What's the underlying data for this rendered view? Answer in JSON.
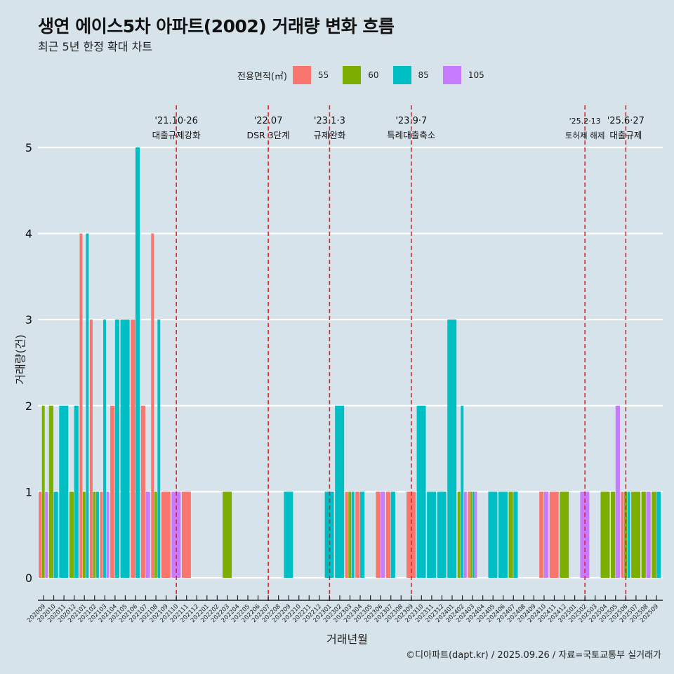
{
  "chart_data": {
    "type": "bar",
    "title": "생연 에이스5차 아파트(2002) 거래량 변화 흐름",
    "subtitle": "최근 5년 한정 확대 차트",
    "xlabel": "거래년월",
    "ylabel": "거래량(건)",
    "ylim": [
      0,
      5
    ],
    "yticks": [
      "0",
      "1",
      "2",
      "3",
      "4",
      "5"
    ],
    "grid": true,
    "legend": {
      "title": "전용면적(㎡)",
      "position": "top",
      "entries": [
        {
          "name": "55",
          "color": "#F8766D"
        },
        {
          "name": "60",
          "color": "#7CAE00"
        },
        {
          "name": "85",
          "color": "#00BFC4"
        },
        {
          "name": "105",
          "color": "#C77CFF"
        }
      ]
    },
    "categories": [
      "202009",
      "202010",
      "202011",
      "202012",
      "202101",
      "202102",
      "202103",
      "202104",
      "202105",
      "202106",
      "202107",
      "202108",
      "202109",
      "202110",
      "202111",
      "202112",
      "202201",
      "202202",
      "202203",
      "202204",
      "202205",
      "202206",
      "202207",
      "202208",
      "202209",
      "202210",
      "202211",
      "202212",
      "202301",
      "202302",
      "202303",
      "202304",
      "202305",
      "202306",
      "202307",
      "202308",
      "202309",
      "202310",
      "202311",
      "202312",
      "202401",
      "202402",
      "202403",
      "202404",
      "202405",
      "202406",
      "202407",
      "202408",
      "202409",
      "202410",
      "202411",
      "202412",
      "202501",
      "202502",
      "202503",
      "202504",
      "202505",
      "202506",
      "202507",
      "202508",
      "202509"
    ],
    "series": [
      {
        "name": "55",
        "color": "#F8766D",
        "values": [
          1,
          0,
          0,
          0,
          4,
          3,
          1,
          2,
          0,
          3,
          2,
          4,
          1,
          0,
          1,
          0,
          0,
          0,
          0,
          0,
          0,
          0,
          0,
          0,
          0,
          0,
          0,
          0,
          0,
          0,
          1,
          1,
          0,
          1,
          1,
          0,
          1,
          0,
          0,
          0,
          0,
          0,
          1,
          0,
          0,
          0,
          0,
          0,
          0,
          1,
          1,
          0,
          0,
          0,
          0,
          0,
          0,
          1,
          0,
          0,
          0
        ]
      },
      {
        "name": "60",
        "color": "#7CAE00",
        "values": [
          2,
          2,
          0,
          1,
          1,
          1,
          0,
          0,
          0,
          0,
          0,
          1,
          0,
          0,
          0,
          0,
          0,
          0,
          1,
          0,
          0,
          0,
          0,
          0,
          0,
          0,
          0,
          0,
          0,
          0,
          1,
          0,
          0,
          0,
          0,
          0,
          0,
          0,
          0,
          0,
          0,
          1,
          1,
          0,
          0,
          0,
          1,
          0,
          0,
          0,
          0,
          1,
          0,
          0,
          0,
          1,
          1,
          1,
          1,
          1,
          1
        ]
      },
      {
        "name": "85",
        "color": "#00BFC4",
        "values": [
          0,
          1,
          2,
          2,
          4,
          1,
          3,
          3,
          3,
          5,
          0,
          3,
          0,
          0,
          0,
          0,
          0,
          0,
          0,
          0,
          0,
          0,
          0,
          0,
          1,
          0,
          0,
          0,
          1,
          2,
          1,
          1,
          0,
          0,
          1,
          0,
          0,
          2,
          1,
          1,
          3,
          2,
          1,
          0,
          1,
          1,
          1,
          0,
          0,
          0,
          0,
          0,
          0,
          0,
          0,
          0,
          0,
          1,
          0,
          0,
          1
        ]
      },
      {
        "name": "105",
        "color": "#C77CFF",
        "values": [
          1,
          0,
          0,
          0,
          0,
          0,
          1,
          0,
          0,
          0,
          1,
          0,
          0,
          1,
          0,
          0,
          0,
          0,
          0,
          0,
          0,
          0,
          0,
          0,
          0,
          0,
          0,
          0,
          0,
          0,
          0,
          0,
          0,
          1,
          0,
          0,
          0,
          0,
          0,
          0,
          0,
          1,
          1,
          0,
          0,
          0,
          0,
          0,
          0,
          1,
          0,
          0,
          0,
          1,
          0,
          0,
          2,
          0,
          0,
          1,
          0
        ]
      }
    ],
    "annotations": [
      {
        "month": "202110",
        "date": "'21.10·26",
        "label": "대출규제강화"
      },
      {
        "month": "202207",
        "date": "'22.07",
        "label": "DSR 3단계"
      },
      {
        "month": "202301",
        "date": "'23.1·3",
        "label": "규제완화"
      },
      {
        "month": "202309",
        "date": "'23.9·7",
        "label": "특례대출축소"
      },
      {
        "month": "202502",
        "date": "'25.2·13",
        "label": "토허제 해제"
      },
      {
        "month": "202506",
        "date": "'25.6·27",
        "label": "대출규제"
      }
    ]
  },
  "caption": "©디아파트(dapt.kr) / 2025.09.26 / 자료=국토교통부 실거래가"
}
